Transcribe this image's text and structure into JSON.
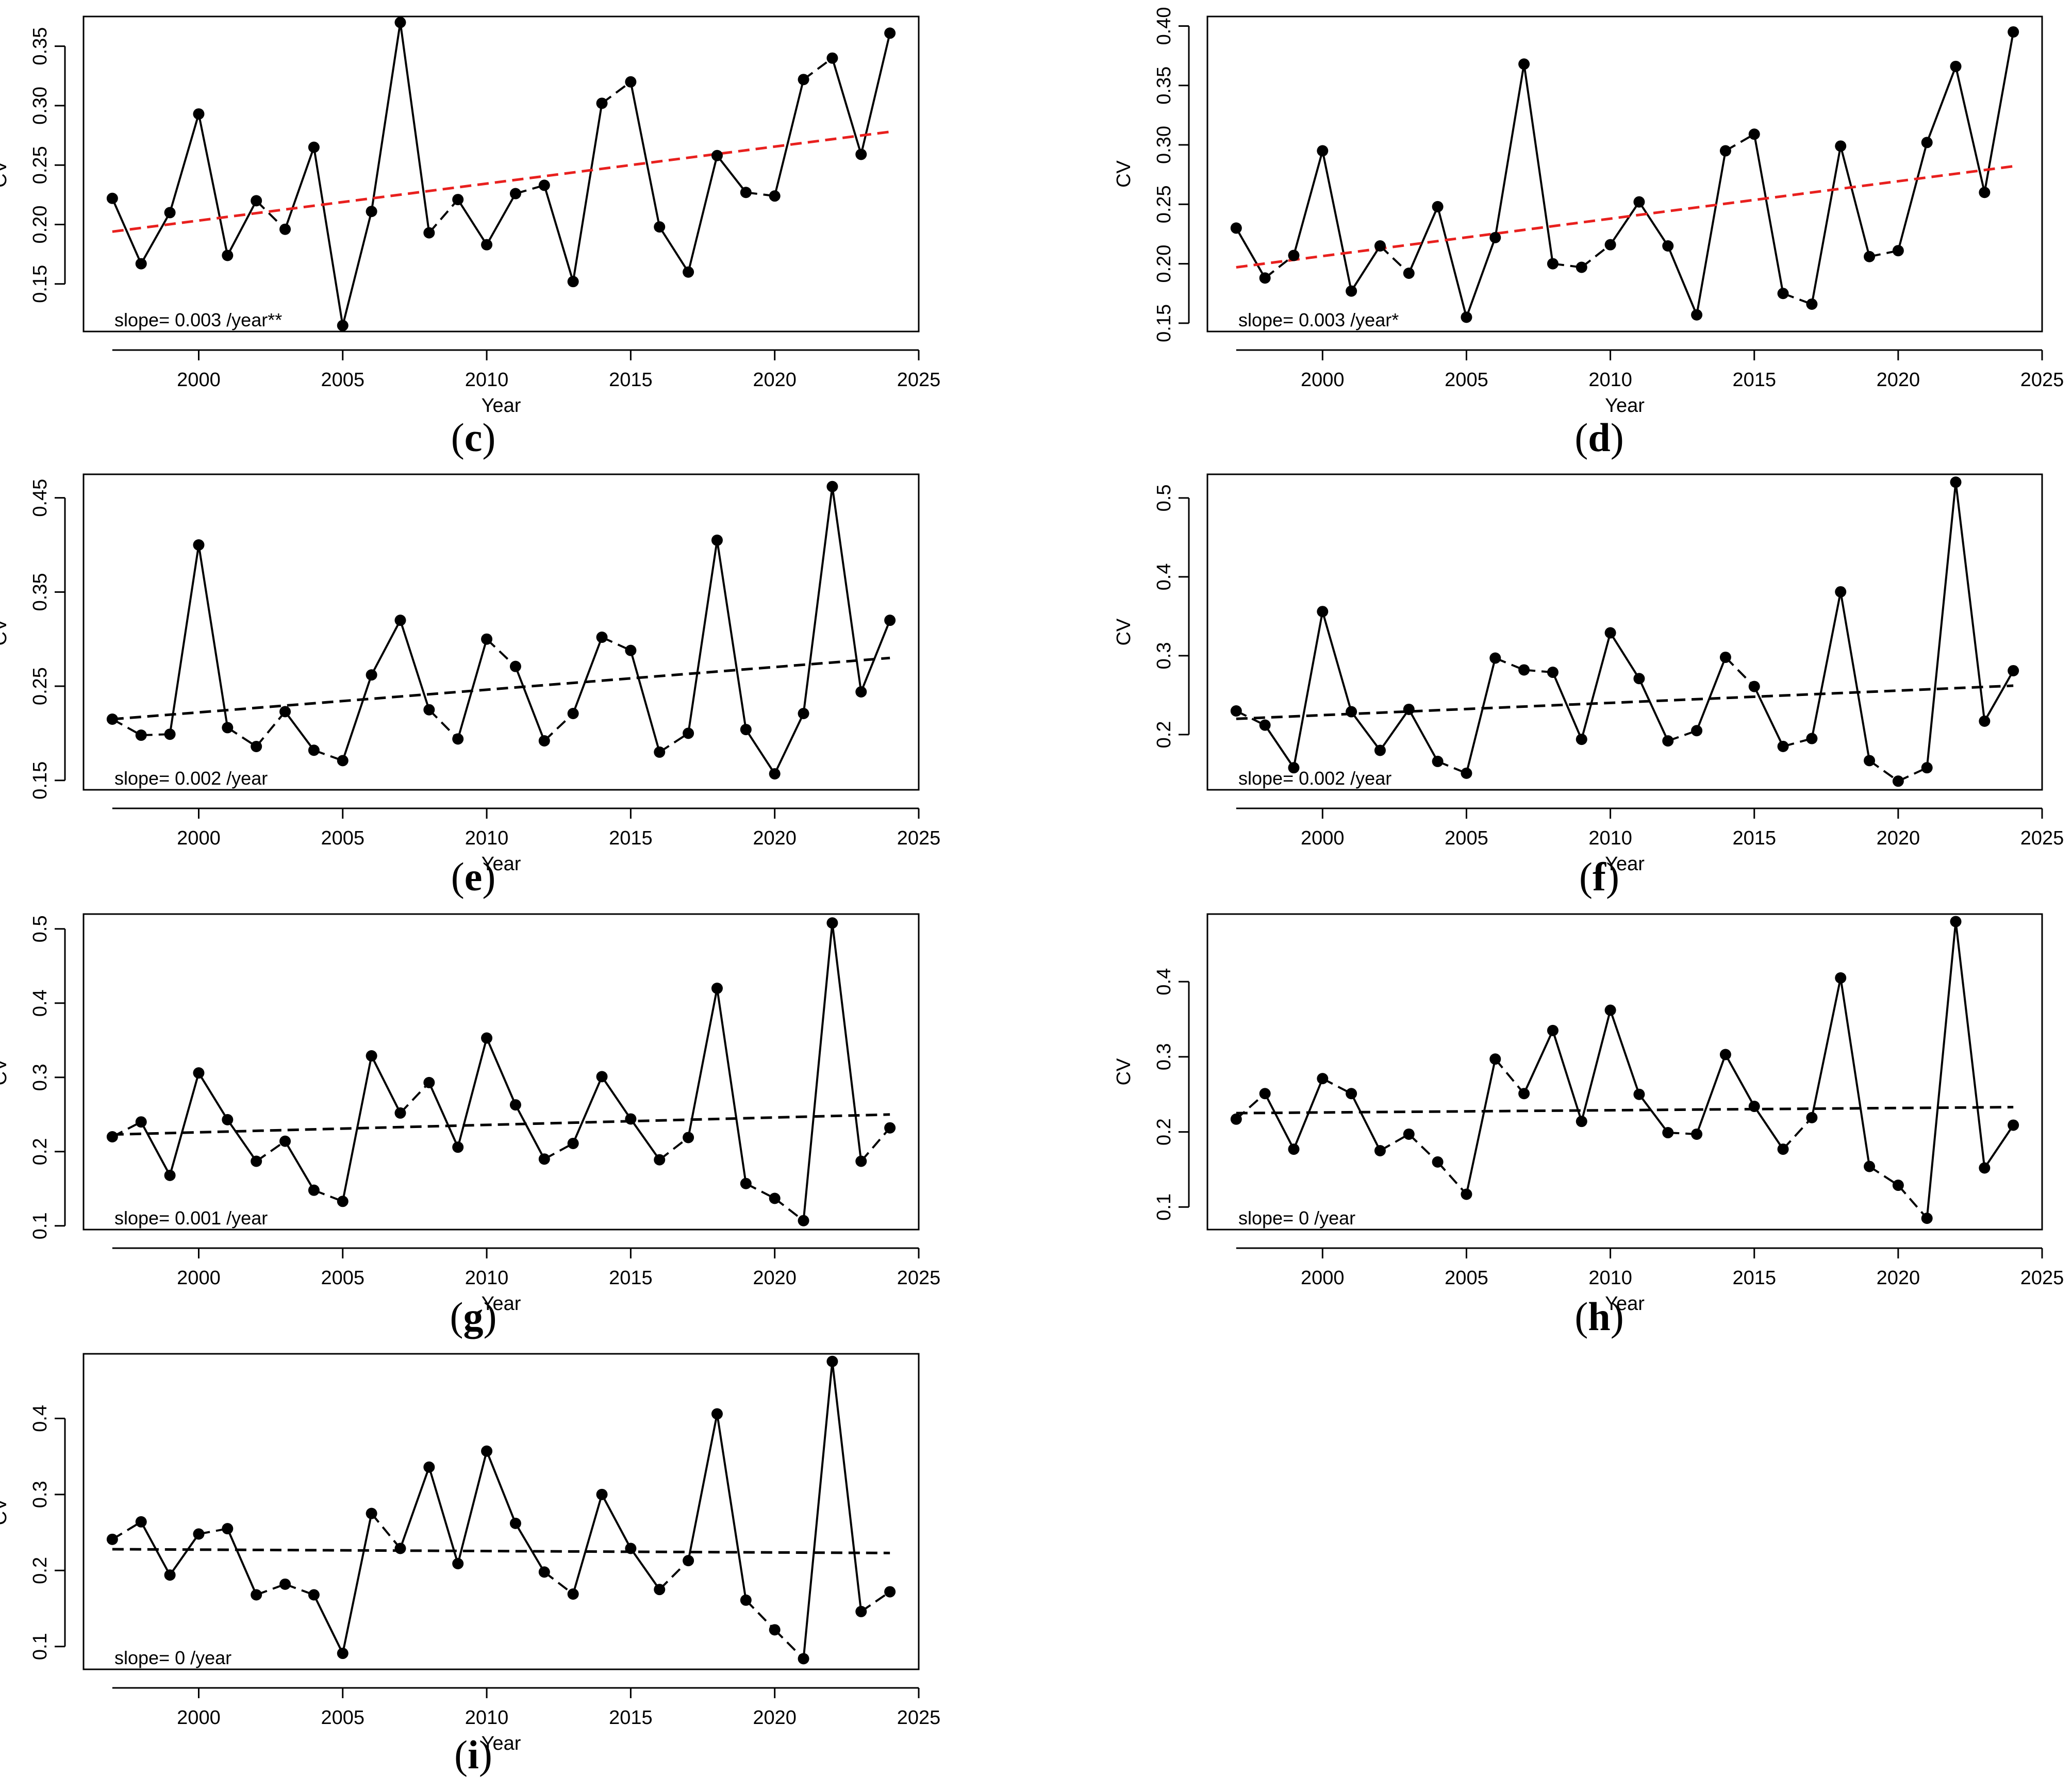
{
  "figure": {
    "year_label": "Year",
    "cv_label": "CV"
  },
  "chart_data": [
    {
      "id": "c",
      "type": "line",
      "caption": "c",
      "xlabel": "Year",
      "ylabel": "CV",
      "xlim": [
        1996,
        2025
      ],
      "ylim": [
        0.11,
        0.375
      ],
      "xticks": [
        2000,
        2005,
        2010,
        2015,
        2020,
        2025
      ],
      "yticks": [
        0.15,
        0.2,
        0.25,
        0.3,
        0.35
      ],
      "ytick_labels": [
        "0.15",
        "0.20",
        "0.25",
        "0.30",
        "0.35"
      ],
      "x": [
        1997,
        1998,
        1999,
        2000,
        2001,
        2002,
        2003,
        2004,
        2005,
        2006,
        2007,
        2008,
        2009,
        2010,
        2011,
        2012,
        2013,
        2014,
        2015,
        2016,
        2017,
        2018,
        2019,
        2020,
        2021,
        2022,
        2023,
        2024
      ],
      "values": [
        0.222,
        0.167,
        0.21,
        0.293,
        0.174,
        0.22,
        0.196,
        0.265,
        0.115,
        0.211,
        0.37,
        0.193,
        0.221,
        0.183,
        0.226,
        0.233,
        0.152,
        0.302,
        0.32,
        0.198,
        0.16,
        0.258,
        0.227,
        0.224,
        0.322,
        0.34,
        0.259,
        0.361
      ],
      "trend": {
        "x": [
          1997,
          2024
        ],
        "y": [
          0.194,
          0.278
        ],
        "color": "#e8201e"
      },
      "annotation": "slope= 0.003 /year**"
    },
    {
      "id": "d",
      "type": "line",
      "caption": "d",
      "xlabel": "Year",
      "ylabel": "CV",
      "xlim": [
        1996,
        2025
      ],
      "ylim": [
        0.143,
        0.408
      ],
      "xticks": [
        2000,
        2005,
        2010,
        2015,
        2020,
        2025
      ],
      "yticks": [
        0.15,
        0.2,
        0.25,
        0.3,
        0.35,
        0.4
      ],
      "ytick_labels": [
        "0.15",
        "0.20",
        "0.25",
        "0.30",
        "0.35",
        "0.40"
      ],
      "x": [
        1997,
        1998,
        1999,
        2000,
        2001,
        2002,
        2003,
        2004,
        2005,
        2006,
        2007,
        2008,
        2009,
        2010,
        2011,
        2012,
        2013,
        2014,
        2015,
        2016,
        2017,
        2018,
        2019,
        2020,
        2021,
        2022,
        2023,
        2024
      ],
      "values": [
        0.23,
        0.188,
        0.207,
        0.295,
        0.177,
        0.215,
        0.192,
        0.248,
        0.155,
        0.222,
        0.368,
        0.2,
        0.197,
        0.216,
        0.252,
        0.215,
        0.157,
        0.295,
        0.309,
        0.175,
        0.166,
        0.299,
        0.206,
        0.211,
        0.302,
        0.366,
        0.26,
        0.395
      ],
      "trend": {
        "x": [
          1997,
          2024
        ],
        "y": [
          0.197,
          0.282
        ],
        "color": "#e8201e"
      },
      "annotation": "slope= 0.003 /year*"
    },
    {
      "id": "e",
      "type": "line",
      "caption": "e",
      "xlabel": "Year",
      "ylabel": "CV",
      "xlim": [
        1996,
        2025
      ],
      "ylim": [
        0.14,
        0.475
      ],
      "xticks": [
        2000,
        2005,
        2010,
        2015,
        2020,
        2025
      ],
      "yticks": [
        0.15,
        0.25,
        0.35,
        0.45
      ],
      "ytick_labels": [
        "0.15",
        "0.25",
        "0.35",
        "0.45"
      ],
      "x": [
        1997,
        1998,
        1999,
        2000,
        2001,
        2002,
        2003,
        2004,
        2005,
        2006,
        2007,
        2008,
        2009,
        2010,
        2011,
        2012,
        2013,
        2014,
        2015,
        2016,
        2017,
        2018,
        2019,
        2020,
        2021,
        2022,
        2023,
        2024
      ],
      "values": [
        0.215,
        0.198,
        0.199,
        0.4,
        0.206,
        0.186,
        0.223,
        0.182,
        0.171,
        0.262,
        0.32,
        0.225,
        0.194,
        0.3,
        0.271,
        0.192,
        0.221,
        0.302,
        0.288,
        0.18,
        0.2,
        0.405,
        0.204,
        0.157,
        0.221,
        0.462,
        0.244,
        0.32
      ],
      "trend": {
        "x": [
          1997,
          2024
        ],
        "y": [
          0.215,
          0.28
        ],
        "color": "#000000"
      },
      "annotation": "slope= 0.002 /year"
    },
    {
      "id": "f",
      "type": "line",
      "caption": "f",
      "xlabel": "Year",
      "ylabel": "CV",
      "xlim": [
        1996,
        2025
      ],
      "ylim": [
        0.13,
        0.53
      ],
      "xticks": [
        2000,
        2005,
        2010,
        2015,
        2020,
        2025
      ],
      "yticks": [
        0.2,
        0.3,
        0.4,
        0.5
      ],
      "ytick_labels": [
        "0.2",
        "0.3",
        "0.4",
        "0.5"
      ],
      "x": [
        1997,
        1998,
        1999,
        2000,
        2001,
        2002,
        2003,
        2004,
        2005,
        2006,
        2007,
        2008,
        2009,
        2010,
        2011,
        2012,
        2013,
        2014,
        2015,
        2016,
        2017,
        2018,
        2019,
        2020,
        2021,
        2022,
        2023,
        2024
      ],
      "values": [
        0.23,
        0.212,
        0.158,
        0.356,
        0.229,
        0.18,
        0.232,
        0.166,
        0.151,
        0.297,
        0.282,
        0.279,
        0.194,
        0.329,
        0.271,
        0.192,
        0.205,
        0.298,
        0.261,
        0.185,
        0.195,
        0.381,
        0.167,
        0.141,
        0.158,
        0.52,
        0.217,
        0.281
      ],
      "trend": {
        "x": [
          1997,
          2024
        ],
        "y": [
          0.22,
          0.262
        ],
        "color": "#000000"
      },
      "annotation": "slope= 0.002 /year"
    },
    {
      "id": "g",
      "type": "line",
      "caption": "g",
      "xlabel": "Year",
      "ylabel": "CV",
      "xlim": [
        1996,
        2025
      ],
      "ylim": [
        0.095,
        0.52
      ],
      "xticks": [
        2000,
        2005,
        2010,
        2015,
        2020,
        2025
      ],
      "yticks": [
        0.1,
        0.2,
        0.3,
        0.4,
        0.5
      ],
      "ytick_labels": [
        "0.1",
        "0.2",
        "0.3",
        "0.4",
        "0.5"
      ],
      "x": [
        1997,
        1998,
        1999,
        2000,
        2001,
        2002,
        2003,
        2004,
        2005,
        2006,
        2007,
        2008,
        2009,
        2010,
        2011,
        2012,
        2013,
        2014,
        2015,
        2016,
        2017,
        2018,
        2019,
        2020,
        2021,
        2022,
        2023,
        2024
      ],
      "values": [
        0.22,
        0.24,
        0.168,
        0.306,
        0.243,
        0.187,
        0.214,
        0.148,
        0.133,
        0.329,
        0.252,
        0.293,
        0.206,
        0.353,
        0.263,
        0.19,
        0.211,
        0.301,
        0.244,
        0.189,
        0.219,
        0.42,
        0.157,
        0.137,
        0.107,
        0.508,
        0.187,
        0.232
      ],
      "trend": {
        "x": [
          1997,
          2024
        ],
        "y": [
          0.223,
          0.25
        ],
        "color": "#000000"
      },
      "annotation": "slope= 0.001 /year"
    },
    {
      "id": "h",
      "type": "line",
      "caption": "h",
      "xlabel": "Year",
      "ylabel": "CV",
      "xlim": [
        1996,
        2025
      ],
      "ylim": [
        0.07,
        0.49
      ],
      "xticks": [
        2000,
        2005,
        2010,
        2015,
        2020,
        2025
      ],
      "yticks": [
        0.1,
        0.2,
        0.3,
        0.4
      ],
      "ytick_labels": [
        "0.1",
        "0.2",
        "0.3",
        "0.4"
      ],
      "x": [
        1997,
        1998,
        1999,
        2000,
        2001,
        2002,
        2003,
        2004,
        2005,
        2006,
        2007,
        2008,
        2009,
        2010,
        2011,
        2012,
        2013,
        2014,
        2015,
        2016,
        2017,
        2018,
        2019,
        2020,
        2021,
        2022,
        2023,
        2024
      ],
      "values": [
        0.217,
        0.251,
        0.177,
        0.271,
        0.251,
        0.175,
        0.197,
        0.16,
        0.117,
        0.297,
        0.251,
        0.335,
        0.214,
        0.362,
        0.25,
        0.199,
        0.197,
        0.303,
        0.234,
        0.177,
        0.219,
        0.405,
        0.154,
        0.129,
        0.085,
        0.48,
        0.152,
        0.209
      ],
      "trend": {
        "x": [
          1997,
          2024
        ],
        "y": [
          0.225,
          0.233
        ],
        "color": "#000000"
      },
      "annotation": "slope= 0 /year"
    },
    {
      "id": "i",
      "type": "line",
      "caption": "i",
      "xlabel": "Year",
      "ylabel": "CV",
      "xlim": [
        1996,
        2025
      ],
      "ylim": [
        0.07,
        0.485
      ],
      "xticks": [
        2000,
        2005,
        2010,
        2015,
        2020,
        2025
      ],
      "yticks": [
        0.1,
        0.2,
        0.3,
        0.4
      ],
      "ytick_labels": [
        "0.1",
        "0.2",
        "0.3",
        "0.4"
      ],
      "x": [
        1997,
        1998,
        1999,
        2000,
        2001,
        2002,
        2003,
        2004,
        2005,
        2006,
        2007,
        2008,
        2009,
        2010,
        2011,
        2012,
        2013,
        2014,
        2015,
        2016,
        2017,
        2018,
        2019,
        2020,
        2021,
        2022,
        2023,
        2024
      ],
      "values": [
        0.241,
        0.264,
        0.194,
        0.248,
        0.255,
        0.168,
        0.182,
        0.168,
        0.091,
        0.275,
        0.229,
        0.336,
        0.209,
        0.357,
        0.262,
        0.198,
        0.169,
        0.3,
        0.229,
        0.175,
        0.213,
        0.406,
        0.161,
        0.122,
        0.084,
        0.475,
        0.146,
        0.172
      ],
      "trend": {
        "x": [
          1997,
          2024
        ],
        "y": [
          0.228,
          0.223
        ],
        "color": "#000000"
      },
      "annotation": "slope= 0 /year"
    }
  ]
}
